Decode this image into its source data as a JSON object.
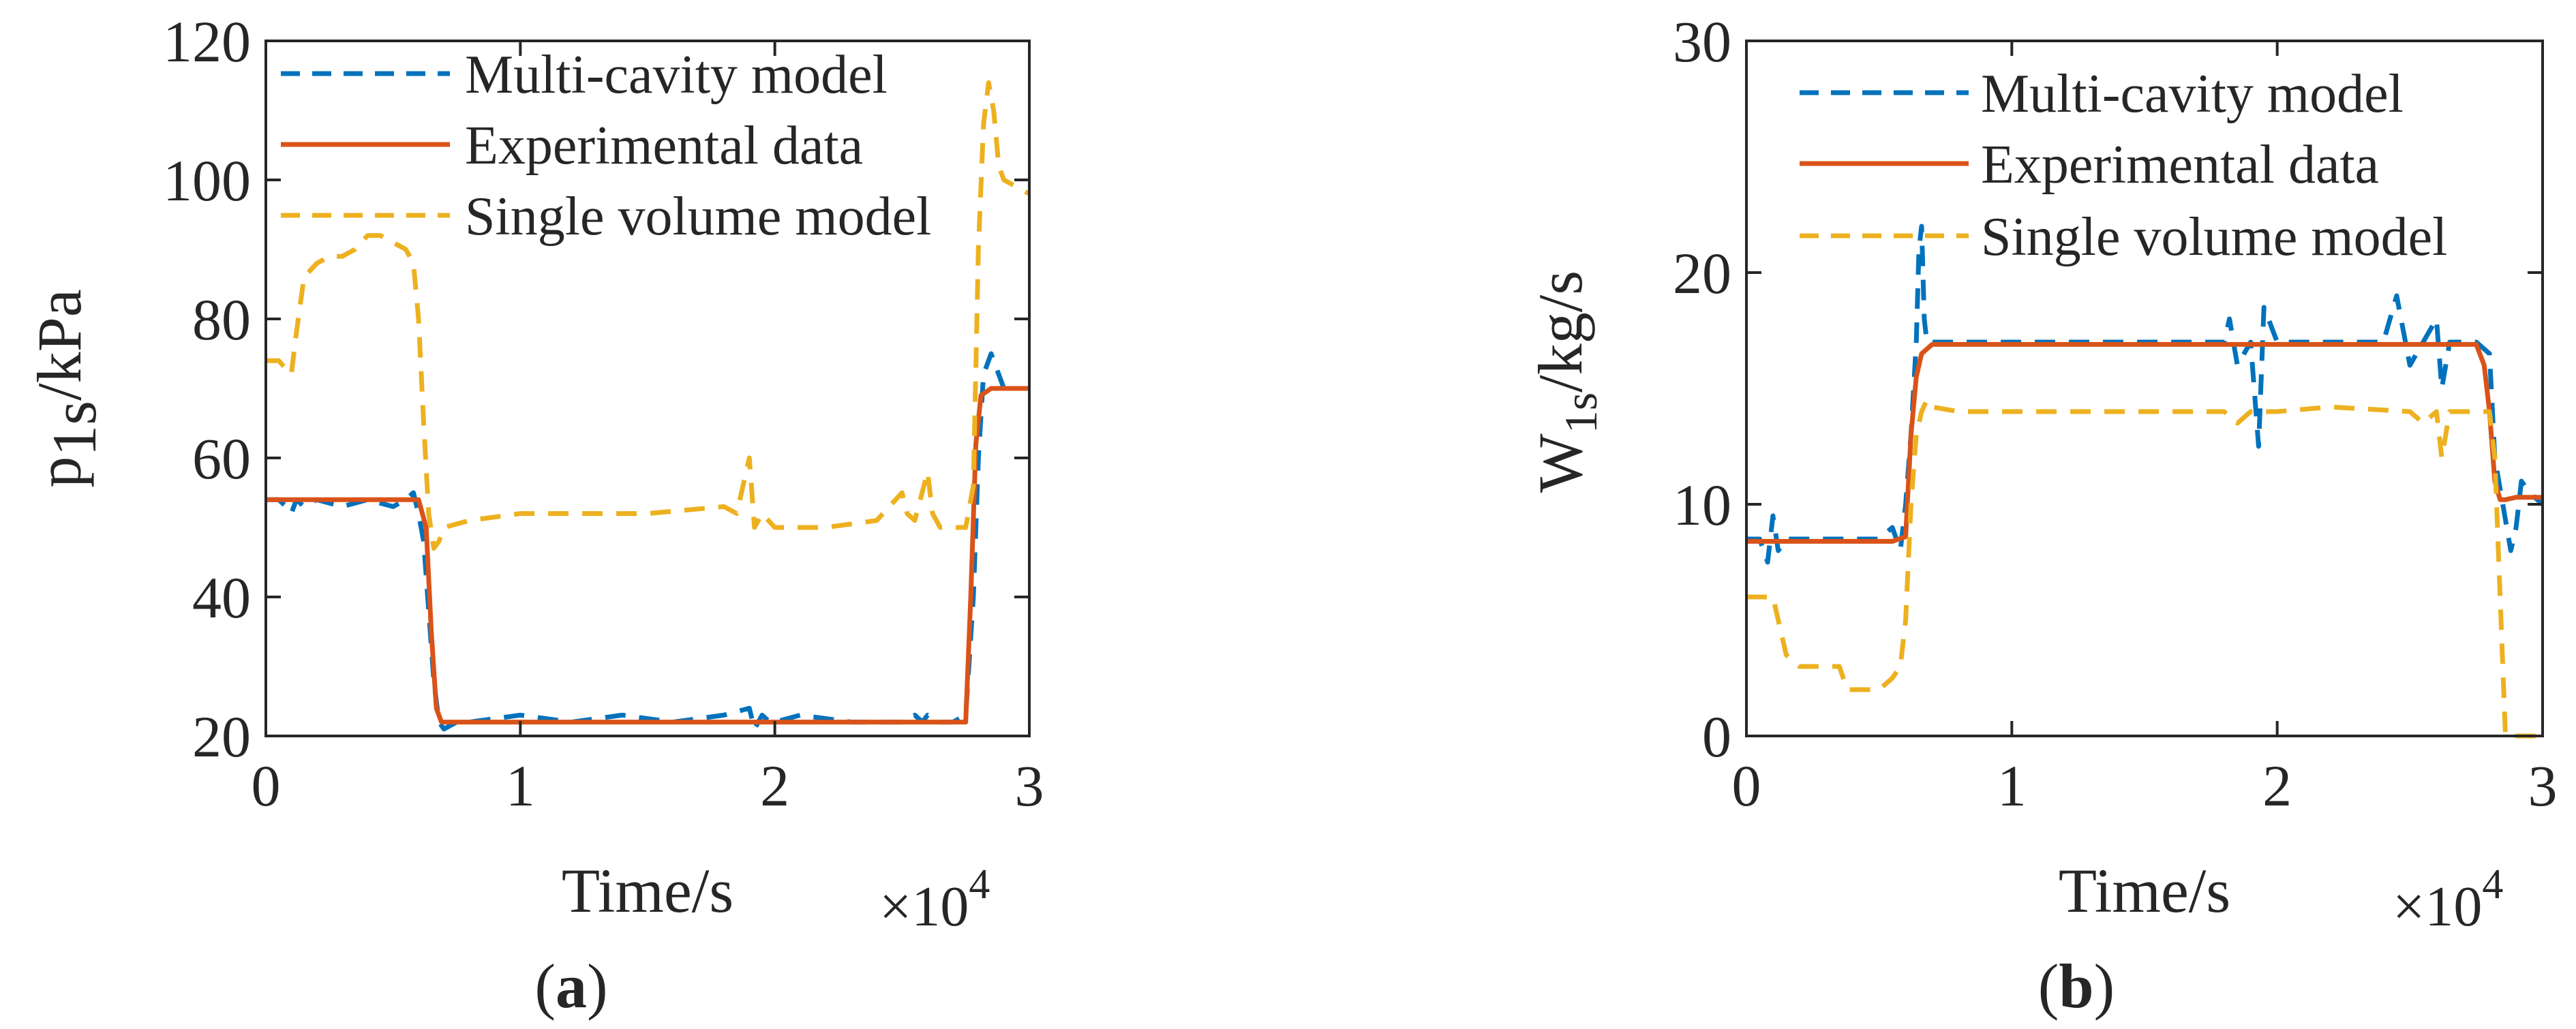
{
  "chart_data": [
    {
      "type": "line",
      "panel_label": "(a)",
      "panel_letter": "a",
      "title": "",
      "xlabel": "Time/s",
      "x_multiplier_base": "×10",
      "x_multiplier_exp": "4",
      "ylabel_main": "p",
      "ylabel_sub": "1s",
      "ylabel_unit": "/kPa",
      "xlim": [
        0,
        3
      ],
      "ylim": [
        20,
        120
      ],
      "xticks": [
        0,
        1,
        2,
        3
      ],
      "yticks": [
        20,
        40,
        60,
        80,
        100,
        120
      ],
      "xtick_labels": [
        "0",
        "1",
        "2",
        "3"
      ],
      "ytick_labels": [
        "20",
        "40",
        "60",
        "80",
        "100",
        "120"
      ],
      "legend_position": "top-right",
      "series": [
        {
          "name": "Multi-cavity model",
          "color": "#0072BD",
          "dash": "dashed",
          "x": [
            0,
            0.05,
            0.08,
            0.1,
            0.12,
            0.15,
            0.2,
            0.3,
            0.4,
            0.5,
            0.55,
            0.58,
            0.6,
            0.62,
            0.64,
            0.66,
            0.68,
            0.7,
            0.75,
            0.8,
            1.0,
            1.2,
            1.4,
            1.6,
            1.8,
            1.9,
            1.92,
            1.95,
            1.98,
            2.0,
            2.1,
            2.3,
            2.5,
            2.55,
            2.58,
            2.6,
            2.65,
            2.7,
            2.75,
            2.78,
            2.8,
            2.82,
            2.85,
            2.9,
            2.95,
            3.0
          ],
          "values": [
            54,
            54,
            53,
            52,
            54,
            53,
            54,
            53,
            54,
            53,
            54,
            55,
            52,
            48,
            38,
            28,
            22,
            21,
            22,
            22,
            23,
            22,
            23,
            22,
            23,
            24,
            21,
            23,
            22,
            22,
            23,
            22,
            22,
            23,
            22,
            23,
            22,
            22,
            23,
            40,
            60,
            72,
            75,
            70,
            70,
            70
          ]
        },
        {
          "name": "Experimental data",
          "color": "#D95319",
          "dash": "solid",
          "x": [
            0,
            0.2,
            0.4,
            0.6,
            0.63,
            0.65,
            0.67,
            0.69,
            0.72,
            1.0,
            1.5,
            2.0,
            2.5,
            2.7,
            2.75,
            2.77,
            2.79,
            2.81,
            2.85,
            2.9,
            3.0
          ],
          "values": [
            54,
            54,
            54,
            54,
            50,
            35,
            24,
            22,
            22,
            22,
            22,
            22,
            22,
            22,
            22,
            40,
            62,
            69,
            70,
            70,
            70
          ]
        },
        {
          "name": "Single volume model",
          "color": "#EDB120",
          "dash": "dashed",
          "x": [
            0,
            0.05,
            0.1,
            0.12,
            0.15,
            0.2,
            0.25,
            0.3,
            0.35,
            0.4,
            0.45,
            0.5,
            0.55,
            0.58,
            0.6,
            0.62,
            0.64,
            0.66,
            0.68,
            0.7,
            0.8,
            1.0,
            1.5,
            1.8,
            1.85,
            1.9,
            1.92,
            1.95,
            2.0,
            2.2,
            2.4,
            2.5,
            2.52,
            2.55,
            2.6,
            2.62,
            2.65,
            2.7,
            2.75,
            2.78,
            2.8,
            2.82,
            2.84,
            2.86,
            2.88,
            2.9,
            2.95,
            3.0
          ],
          "values": [
            74,
            74,
            72,
            78,
            86,
            88,
            89,
            89,
            90,
            92,
            92,
            91,
            90,
            88,
            80,
            65,
            52,
            47,
            48,
            50,
            51,
            52,
            52,
            53,
            52,
            60,
            50,
            52,
            50,
            50,
            51,
            55,
            52,
            51,
            58,
            52,
            50,
            50,
            50,
            56,
            90,
            108,
            114,
            110,
            102,
            100,
            99,
            98
          ]
        }
      ]
    },
    {
      "type": "line",
      "panel_label": "(b)",
      "panel_letter": "b",
      "title": "",
      "xlabel": "Time/s",
      "x_multiplier_base": "×10",
      "x_multiplier_exp": "4",
      "ylabel_main": "W",
      "ylabel_sub": "1s",
      "ylabel_unit": "/kg/s",
      "xlim": [
        0,
        3
      ],
      "ylim": [
        0,
        30
      ],
      "xticks": [
        0,
        1,
        2,
        3
      ],
      "yticks": [
        0,
        10,
        20,
        30
      ],
      "xtick_labels": [
        "0",
        "1",
        "2",
        "3"
      ],
      "ytick_labels": [
        "0",
        "10",
        "20",
        "30"
      ],
      "legend_position": "top-right",
      "series": [
        {
          "name": "Multi-cavity model",
          "color": "#0072BD",
          "dash": "dashed",
          "x": [
            0,
            0.05,
            0.08,
            0.1,
            0.12,
            0.15,
            0.2,
            0.3,
            0.4,
            0.5,
            0.55,
            0.58,
            0.6,
            0.62,
            0.64,
            0.65,
            0.66,
            0.67,
            0.68,
            0.7,
            0.75,
            0.8,
            1.0,
            1.2,
            1.5,
            1.8,
            1.82,
            1.85,
            1.9,
            1.93,
            1.95,
            2.0,
            2.2,
            2.4,
            2.45,
            2.5,
            2.55,
            2.6,
            2.62,
            2.65,
            2.7,
            2.75,
            2.8,
            2.82,
            2.85,
            2.88,
            2.9,
            2.92,
            2.95,
            3.0
          ],
          "values": [
            8.5,
            8.5,
            7.5,
            9.5,
            8,
            8.5,
            8.5,
            8.5,
            8.5,
            8.5,
            9,
            8,
            10,
            13,
            17,
            21,
            22,
            18,
            17,
            17,
            17,
            17,
            17,
            17,
            17,
            17,
            18,
            16,
            17,
            12.5,
            18.5,
            17,
            17,
            17,
            19,
            16,
            17,
            18,
            15,
            17,
            17,
            17,
            16.5,
            12,
            10,
            8,
            9,
            11,
            10.5,
            10
          ]
        },
        {
          "name": "Experimental data",
          "color": "#D95319",
          "dash": "solid",
          "x": [
            0,
            0.2,
            0.4,
            0.55,
            0.6,
            0.62,
            0.64,
            0.66,
            0.7,
            1.0,
            1.5,
            2.0,
            2.5,
            2.75,
            2.78,
            2.8,
            2.82,
            2.84,
            2.86,
            2.9,
            3.0
          ],
          "values": [
            8.4,
            8.4,
            8.4,
            8.4,
            8.6,
            13,
            15.5,
            16.5,
            16.9,
            16.9,
            16.9,
            16.9,
            16.9,
            16.9,
            16,
            14,
            11,
            10.2,
            10.2,
            10.3,
            10.3
          ]
        },
        {
          "name": "Single volume model",
          "color": "#EDB120",
          "dash": "dashed",
          "x": [
            0,
            0.05,
            0.1,
            0.12,
            0.15,
            0.2,
            0.25,
            0.3,
            0.35,
            0.38,
            0.4,
            0.45,
            0.5,
            0.55,
            0.58,
            0.6,
            0.62,
            0.64,
            0.66,
            0.68,
            0.7,
            0.8,
            1.0,
            1.5,
            1.8,
            1.85,
            1.9,
            2.0,
            2.2,
            2.5,
            2.55,
            2.6,
            2.62,
            2.65,
            2.7,
            2.75,
            2.78,
            2.8,
            2.82,
            2.84,
            2.86,
            2.9,
            3.0
          ],
          "values": [
            6,
            6,
            6,
            5,
            3.5,
            3,
            3,
            3,
            3,
            2,
            2,
            2,
            2,
            2.5,
            3,
            5,
            10,
            13,
            14,
            14.5,
            14.2,
            14,
            14,
            14,
            14,
            13.5,
            14,
            14,
            14.2,
            14,
            13.5,
            14,
            12,
            14,
            14,
            14,
            14,
            14,
            12,
            6,
            0,
            0,
            0
          ]
        }
      ]
    }
  ]
}
